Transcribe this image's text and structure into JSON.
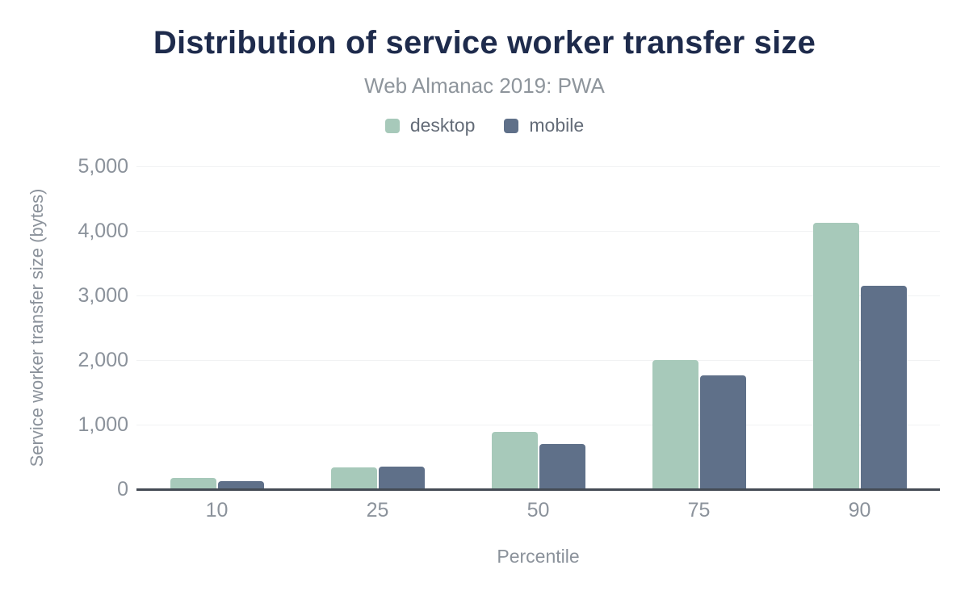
{
  "chart": {
    "title": "Distribution of service worker transfer size",
    "subtitle": "Web Almanac 2019: PWA",
    "xlabel": "Percentile",
    "ylabel": "Service worker transfer size (bytes)"
  },
  "legend": {
    "items": [
      {
        "label": "desktop",
        "color": "#a7c9ba"
      },
      {
        "label": "mobile",
        "color": "#5f7089"
      }
    ]
  },
  "chart_data": {
    "type": "bar",
    "title": "Distribution of service worker transfer size",
    "subtitle": "Web Almanac 2019: PWA",
    "categories": [
      "10",
      "25",
      "50",
      "75",
      "90"
    ],
    "series": [
      {
        "name": "desktop",
        "color": "#a7c9ba",
        "values": [
          175,
          340,
          890,
          2000,
          4125
        ]
      },
      {
        "name": "mobile",
        "color": "#5f7089",
        "values": [
          125,
          355,
          700,
          1760,
          3150
        ]
      }
    ],
    "xlabel": "Percentile",
    "ylabel": "Service worker transfer size (bytes)",
    "ylim": [
      0,
      5000
    ],
    "yticks": [
      0,
      1000,
      2000,
      3000,
      4000,
      5000
    ],
    "ytick_labels": [
      "0",
      "1,000",
      "2,000",
      "3,000",
      "4,000",
      "5,000"
    ],
    "grid": "horizontal",
    "legend_position": "top",
    "bar_corner_radius": 4
  },
  "colors": {
    "title": "#1e2b4c",
    "subtitle": "#8e959c",
    "axis_text": "#8b929b",
    "legend_text": "#646c78",
    "gridline": "#f1f2f3",
    "axis_line": "#444b54",
    "background": "#ffffff"
  }
}
